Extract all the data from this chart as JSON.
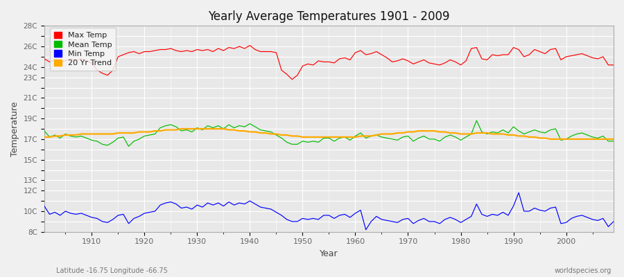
{
  "title": "Yearly Average Temperatures 1901 - 2009",
  "xlabel": "Year",
  "ylabel": "Temperature",
  "lat_lon_label": "Latitude -16.75 Longitude -66.75",
  "watermark": "worldspecies.org",
  "years": [
    1901,
    1902,
    1903,
    1904,
    1905,
    1906,
    1907,
    1908,
    1909,
    1910,
    1911,
    1912,
    1913,
    1914,
    1915,
    1916,
    1917,
    1918,
    1919,
    1920,
    1921,
    1922,
    1923,
    1924,
    1925,
    1926,
    1927,
    1928,
    1929,
    1930,
    1931,
    1932,
    1933,
    1934,
    1935,
    1936,
    1937,
    1938,
    1939,
    1940,
    1941,
    1942,
    1943,
    1944,
    1945,
    1946,
    1947,
    1948,
    1949,
    1950,
    1951,
    1952,
    1953,
    1954,
    1955,
    1956,
    1957,
    1958,
    1959,
    1960,
    1961,
    1962,
    1963,
    1964,
    1965,
    1966,
    1967,
    1968,
    1969,
    1970,
    1971,
    1972,
    1973,
    1974,
    1975,
    1976,
    1977,
    1978,
    1979,
    1980,
    1981,
    1982,
    1983,
    1984,
    1985,
    1986,
    1987,
    1988,
    1989,
    1990,
    1991,
    1992,
    1993,
    1994,
    1995,
    1996,
    1997,
    1998,
    1999,
    2000,
    2001,
    2002,
    2003,
    2004,
    2005,
    2006,
    2007,
    2008,
    2009
  ],
  "max_temp": [
    24.8,
    24.5,
    24.7,
    24.5,
    24.6,
    24.8,
    24.6,
    24.8,
    24.6,
    24.4,
    23.7,
    23.4,
    23.2,
    23.7,
    25.0,
    25.2,
    25.4,
    25.5,
    25.3,
    25.5,
    25.5,
    25.6,
    25.7,
    25.7,
    25.8,
    25.6,
    25.5,
    25.6,
    25.5,
    25.7,
    25.6,
    25.7,
    25.5,
    25.8,
    25.6,
    25.9,
    25.8,
    26.0,
    25.8,
    26.1,
    25.7,
    25.5,
    25.5,
    25.5,
    25.4,
    23.7,
    23.3,
    22.8,
    23.2,
    24.1,
    24.3,
    24.2,
    24.6,
    24.5,
    24.5,
    24.4,
    24.8,
    24.9,
    24.7,
    25.4,
    25.6,
    25.2,
    25.3,
    25.5,
    25.2,
    24.9,
    24.5,
    24.6,
    24.8,
    24.6,
    24.3,
    24.5,
    24.7,
    24.4,
    24.3,
    24.2,
    24.4,
    24.7,
    24.5,
    24.2,
    24.6,
    25.8,
    25.9,
    24.8,
    24.7,
    25.2,
    25.1,
    25.2,
    25.2,
    25.9,
    25.7,
    25.0,
    25.2,
    25.7,
    25.5,
    25.3,
    25.7,
    25.8,
    24.7,
    25.0,
    25.1,
    25.2,
    25.3,
    25.1,
    24.9,
    24.8,
    25.0,
    24.2,
    24.2
  ],
  "mean_temp": [
    17.8,
    17.2,
    17.4,
    17.1,
    17.5,
    17.3,
    17.2,
    17.3,
    17.1,
    16.9,
    16.8,
    16.5,
    16.4,
    16.7,
    17.1,
    17.2,
    16.3,
    16.8,
    17.0,
    17.3,
    17.4,
    17.5,
    18.1,
    18.3,
    18.4,
    18.2,
    17.8,
    17.9,
    17.7,
    18.1,
    17.9,
    18.3,
    18.1,
    18.3,
    18.0,
    18.4,
    18.1,
    18.3,
    18.2,
    18.5,
    18.2,
    17.9,
    17.8,
    17.7,
    17.4,
    17.1,
    16.7,
    16.5,
    16.5,
    16.8,
    16.7,
    16.8,
    16.7,
    17.1,
    17.1,
    16.8,
    17.1,
    17.2,
    16.9,
    17.3,
    17.6,
    17.1,
    17.3,
    17.4,
    17.2,
    17.1,
    17.0,
    16.9,
    17.2,
    17.3,
    16.8,
    17.1,
    17.3,
    17.0,
    17.0,
    16.8,
    17.2,
    17.4,
    17.2,
    16.9,
    17.2,
    17.5,
    18.8,
    17.7,
    17.5,
    17.7,
    17.6,
    17.9,
    17.6,
    18.2,
    17.8,
    17.5,
    17.7,
    17.9,
    17.7,
    17.6,
    17.9,
    18.0,
    16.9,
    17.0,
    17.3,
    17.5,
    17.6,
    17.4,
    17.2,
    17.1,
    17.3,
    16.8,
    16.8
  ],
  "min_temp": [
    10.5,
    9.7,
    9.9,
    9.6,
    10.0,
    9.8,
    9.7,
    9.8,
    9.6,
    9.4,
    9.3,
    9.0,
    8.9,
    9.2,
    9.6,
    9.7,
    8.8,
    9.3,
    9.5,
    9.8,
    9.9,
    10.0,
    10.6,
    10.8,
    10.9,
    10.7,
    10.3,
    10.4,
    10.2,
    10.6,
    10.4,
    10.8,
    10.6,
    10.8,
    10.5,
    10.9,
    10.6,
    10.8,
    10.7,
    11.0,
    10.7,
    10.4,
    10.3,
    10.2,
    9.9,
    9.6,
    9.2,
    9.0,
    9.0,
    9.3,
    9.2,
    9.3,
    9.2,
    9.6,
    9.6,
    9.3,
    9.6,
    9.7,
    9.4,
    9.8,
    10.1,
    8.2,
    9.0,
    9.5,
    9.2,
    9.1,
    9.0,
    8.9,
    9.2,
    9.3,
    8.8,
    9.1,
    9.3,
    9.0,
    9.0,
    8.8,
    9.2,
    9.4,
    9.2,
    8.9,
    9.2,
    9.5,
    10.7,
    9.7,
    9.5,
    9.7,
    9.6,
    9.9,
    9.6,
    10.5,
    11.8,
    10.0,
    10.0,
    10.3,
    10.1,
    10.0,
    10.3,
    10.4,
    8.8,
    8.9,
    9.3,
    9.5,
    9.6,
    9.4,
    9.2,
    9.1,
    9.3,
    8.5,
    9.0
  ],
  "trend": [
    17.2,
    17.2,
    17.3,
    17.3,
    17.4,
    17.4,
    17.4,
    17.5,
    17.5,
    17.5,
    17.5,
    17.5,
    17.5,
    17.5,
    17.6,
    17.6,
    17.6,
    17.6,
    17.7,
    17.7,
    17.7,
    17.8,
    17.8,
    17.9,
    17.9,
    17.9,
    18.0,
    18.0,
    18.0,
    18.0,
    18.0,
    18.0,
    18.0,
    18.0,
    18.0,
    17.9,
    17.9,
    17.8,
    17.8,
    17.7,
    17.7,
    17.6,
    17.6,
    17.5,
    17.5,
    17.4,
    17.4,
    17.3,
    17.3,
    17.2,
    17.2,
    17.2,
    17.2,
    17.2,
    17.2,
    17.2,
    17.2,
    17.2,
    17.2,
    17.2,
    17.3,
    17.3,
    17.3,
    17.4,
    17.5,
    17.5,
    17.5,
    17.6,
    17.6,
    17.7,
    17.7,
    17.8,
    17.8,
    17.8,
    17.8,
    17.7,
    17.7,
    17.6,
    17.6,
    17.5,
    17.5,
    17.5,
    17.6,
    17.6,
    17.6,
    17.5,
    17.5,
    17.5,
    17.4,
    17.4,
    17.3,
    17.3,
    17.2,
    17.2,
    17.1,
    17.1,
    17.0,
    17.0,
    17.0,
    17.0,
    17.0,
    17.0,
    17.0,
    17.0,
    17.0,
    17.0,
    17.0,
    17.0,
    17.0
  ],
  "max_color": "#ff0000",
  "mean_color": "#00bb00",
  "min_color": "#0000ff",
  "trend_color": "#ffaa00",
  "fig_bg_color": "#f0f0f0",
  "plot_bg_color": "#e8e8e8",
  "grid_color": "#ffffff",
  "ytick_labels": [
    "8C",
    "",
    "10C",
    "",
    "12C",
    "13C",
    "",
    "15C",
    "",
    "17C",
    "",
    "19C",
    "",
    "21C",
    "",
    "23C",
    "24C",
    "",
    "26C",
    "",
    "28C"
  ],
  "ytick_values": [
    8,
    9,
    10,
    11,
    12,
    13,
    14,
    15,
    16,
    17,
    18,
    19,
    20,
    21,
    22,
    23,
    24,
    25,
    26,
    27,
    28
  ],
  "ylim": [
    8,
    28
  ],
  "xtick_years": [
    1910,
    1920,
    1930,
    1940,
    1950,
    1960,
    1970,
    1980,
    1990,
    2000
  ],
  "legend_entries": [
    "Max Temp",
    "Mean Temp",
    "Min Temp",
    "20 Yr Trend"
  ],
  "legend_colors": [
    "#ff0000",
    "#00bb00",
    "#0000ff",
    "#ffaa00"
  ]
}
